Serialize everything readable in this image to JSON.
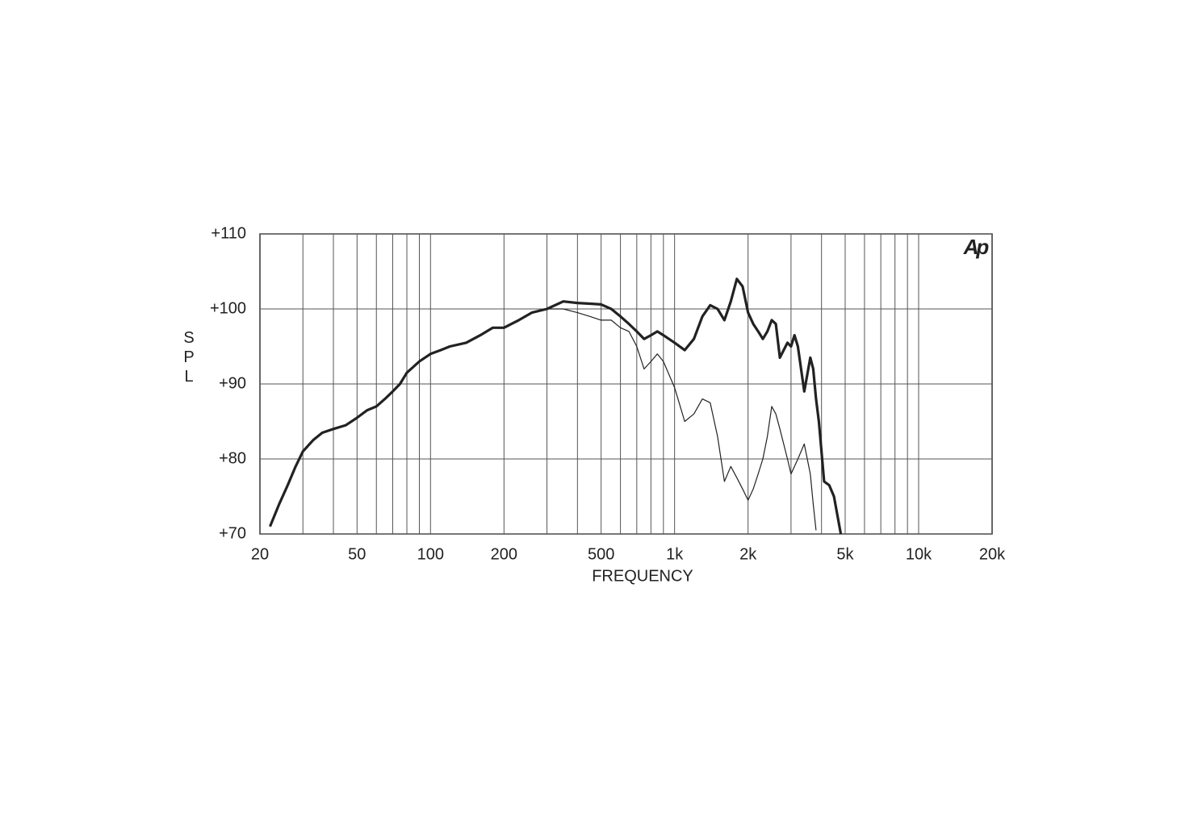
{
  "chart_data": {
    "type": "line",
    "logo": "Ap",
    "x_label": "FREQUENCY",
    "y_label": "SPL",
    "xlim": [
      20,
      20000
    ],
    "ylim": [
      70,
      110
    ],
    "xscale": "log",
    "grid": true,
    "xticks": [
      20,
      50,
      100,
      200,
      500,
      {
        "value": 1000,
        "label": "1k"
      },
      {
        "value": 2000,
        "label": "2k"
      },
      {
        "value": 5000,
        "label": "5k"
      },
      {
        "value": 10000,
        "label": "10k"
      },
      {
        "value": 20000,
        "label": "20k"
      }
    ],
    "xgrid": [
      30,
      40,
      50,
      60,
      70,
      80,
      90,
      100,
      200,
      300,
      400,
      500,
      600,
      700,
      800,
      900,
      1000,
      2000,
      3000,
      4000,
      5000,
      6000,
      7000,
      8000,
      9000,
      10000
    ],
    "yticks": [
      {
        "value": 70,
        "label": "+70"
      },
      {
        "value": 80,
        "label": "+80"
      },
      {
        "value": 90,
        "label": "+90"
      },
      {
        "value": 100,
        "label": "+100"
      },
      {
        "value": 110,
        "label": "+110"
      }
    ],
    "x": [
      22,
      24,
      26,
      28,
      30,
      33,
      36,
      40,
      45,
      50,
      55,
      60,
      65,
      70,
      75,
      80,
      90,
      100,
      110,
      120,
      140,
      160,
      180,
      200,
      230,
      260,
      300,
      350,
      400,
      450,
      500,
      550,
      600,
      650,
      700,
      750,
      800,
      850,
      900,
      1000,
      1100,
      1200,
      1300,
      1400,
      1500,
      1600,
      1700,
      1800,
      1900,
      2000,
      2100,
      2200,
      2300,
      2400,
      2500,
      2600,
      2700,
      2900,
      3000,
      3100,
      3200,
      3400,
      3600,
      3700,
      3800,
      3900,
      4100,
      4300,
      4500,
      4800
    ],
    "series": [
      {
        "color": "#222222",
        "width": 3.2,
        "values": [
          71,
          74,
          76.5,
          79,
          81,
          82.5,
          83.5,
          84,
          84.5,
          85.5,
          86.5,
          87,
          88,
          89,
          90,
          91.5,
          93,
          94,
          94.5,
          95,
          95.5,
          96.5,
          97.5,
          97.5,
          98.5,
          99.5,
          100,
          101,
          100.8,
          100.7,
          100.6,
          100,
          99,
          98,
          97,
          96,
          96.5,
          97,
          96.5,
          95.5,
          94.5,
          96,
          99,
          100.5,
          100,
          98.5,
          101,
          104,
          103,
          99.5,
          98,
          97,
          96,
          97,
          98.5,
          98,
          93.5,
          95.5,
          95,
          96.5,
          95,
          89,
          93.5,
          92,
          88,
          85,
          77,
          76.5,
          75,
          70
        ]
      },
      {
        "color": "#222222",
        "width": 1.2,
        "values": [
          71,
          74,
          76.5,
          79,
          81,
          82.5,
          83.5,
          84,
          84.5,
          85.5,
          86.5,
          87,
          88,
          89,
          90,
          91.5,
          93,
          94,
          94.5,
          95,
          95.5,
          96.5,
          97.5,
          97.5,
          98.5,
          99.5,
          100,
          100,
          99.5,
          99,
          98.5,
          98.5,
          97.5,
          97,
          95,
          92,
          93,
          94,
          93,
          89.5,
          85,
          86,
          88,
          87.5,
          83,
          77,
          79,
          77.5,
          76,
          74.5,
          76,
          78,
          80,
          83,
          87,
          86,
          84,
          80,
          78,
          79,
          80,
          82,
          78,
          74,
          70.5,
          null,
          null,
          null,
          null,
          null
        ]
      }
    ]
  }
}
